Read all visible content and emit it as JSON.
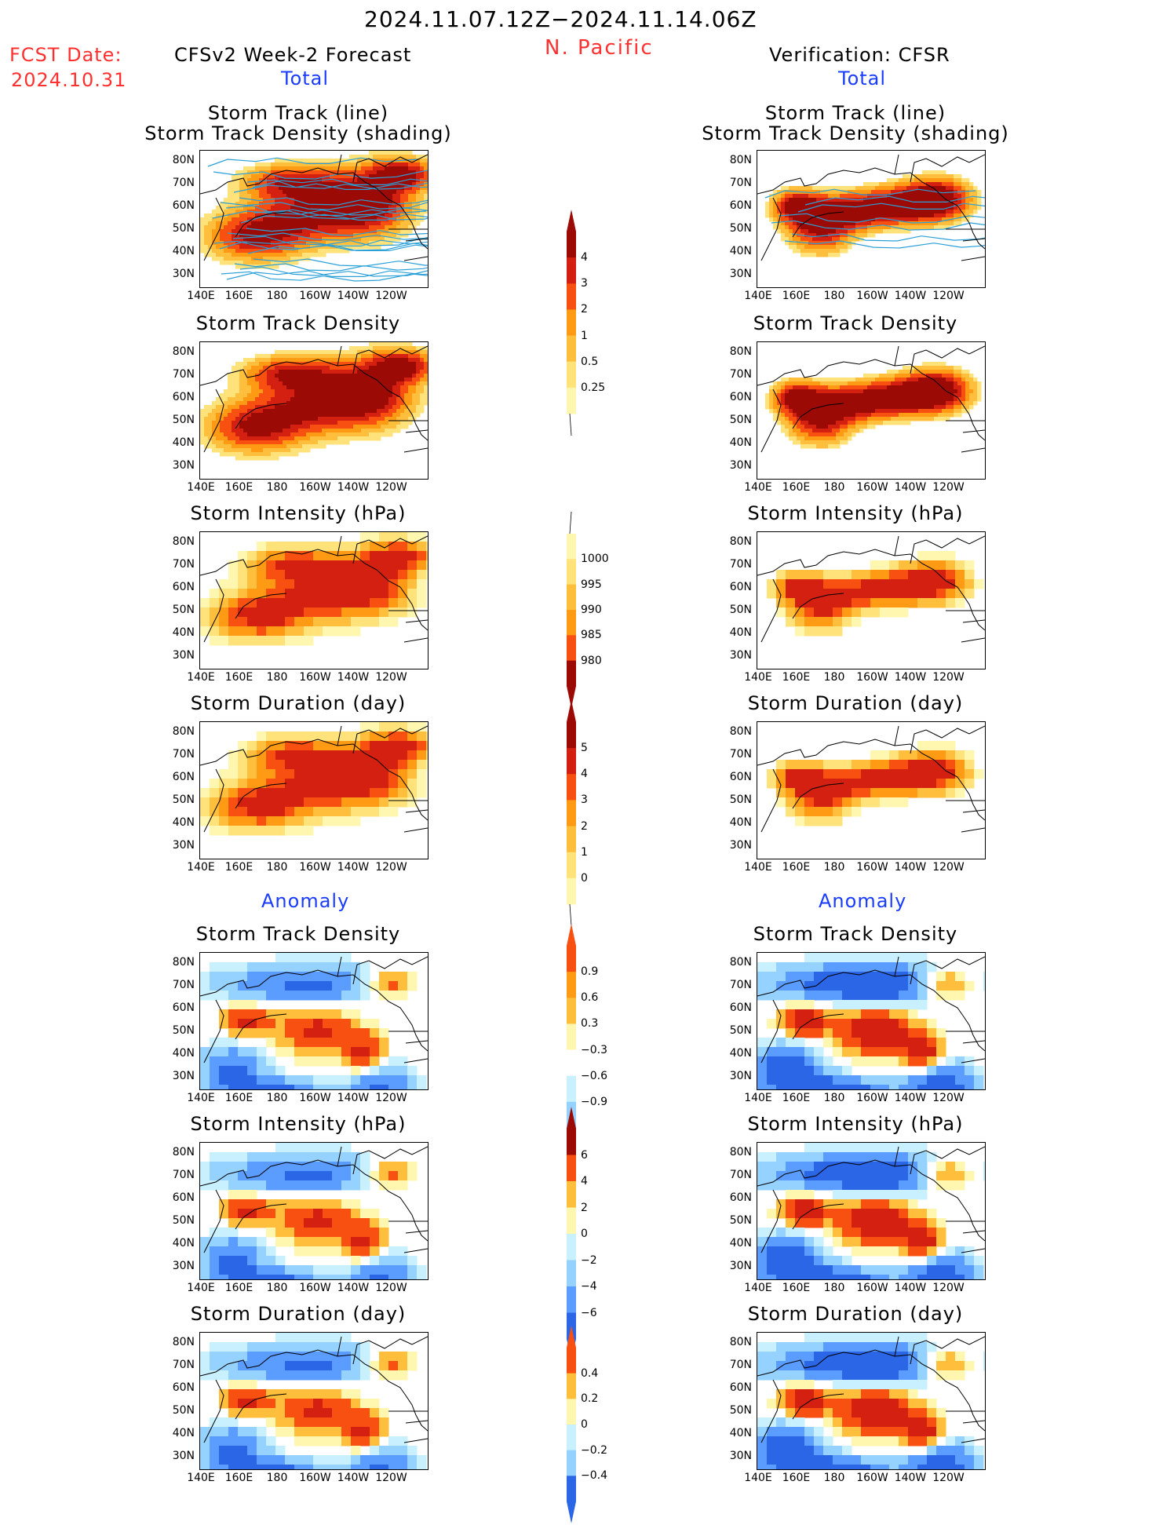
{
  "header": {
    "date_range": "2024.11.07.12Z−2024.11.14.06Z",
    "region": "N. Pacific",
    "fcst_label": "FCST Date:",
    "fcst_date": "2024.10.31",
    "left_title": "CFSv2 Week-2 Forecast",
    "right_title": "Verification: CFSR",
    "total_label": "Total",
    "anomaly_label": "Anomaly"
  },
  "panel_titles": {
    "track_line": "Storm Track (line)",
    "track_shading": "Storm Track Density (shading)",
    "density": "Storm Track Density",
    "intensity": "Storm Intensity (hPa)",
    "duration": "Storm Duration (day)"
  },
  "axes": {
    "lat": [
      "80N",
      "70N",
      "60N",
      "50N",
      "40N",
      "30N"
    ],
    "lon": [
      "140E",
      "160E",
      "180",
      "160W",
      "140W",
      "120W"
    ]
  },
  "colorbars": {
    "density_total": [
      "4",
      "3",
      "2",
      "1",
      "0.5",
      "0.25"
    ],
    "intensity_total": [
      "1000",
      "995",
      "990",
      "985",
      "980"
    ],
    "duration_total": [
      "5",
      "4",
      "3",
      "2",
      "1",
      "0"
    ],
    "density_anom": [
      "0.9",
      "0.6",
      "0.3",
      "−0.3",
      "−0.6",
      "−0.9"
    ],
    "intensity_anom": [
      "6",
      "4",
      "2",
      "0",
      "−2",
      "−4",
      "−6"
    ],
    "duration_anom": [
      "0.4",
      "0.2",
      "0",
      "−0.2",
      "−0.4"
    ]
  },
  "colors": {
    "warm": [
      "#fff6b0",
      "#ffe27a",
      "#ffbe3c",
      "#ff9a14",
      "#f85010",
      "#d42010",
      "#9c0a06"
    ],
    "cool": [
      "#c8f0ff",
      "#96d2ff",
      "#5a9cff",
      "#2a66e6"
    ]
  }
}
